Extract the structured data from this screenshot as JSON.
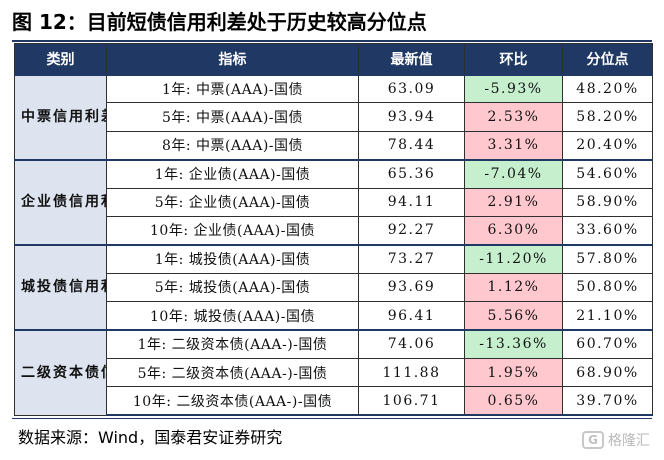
{
  "title": "图 12：目前短债信用利差处于历史较高分位点",
  "table": {
    "headers": [
      "类别",
      "指标",
      "最新值",
      "环比",
      "分位点"
    ],
    "groups": [
      {
        "category": "中票信用利差",
        "rows": [
          {
            "indicator": "1年: 中票(AAA)-国债",
            "latest": "63.09",
            "mom": "-5.93%",
            "mom_dir": "neg",
            "percentile": "48.20%"
          },
          {
            "indicator": "5年: 中票(AAA)-国债",
            "latest": "93.94",
            "mom": "2.53%",
            "mom_dir": "pos",
            "percentile": "58.20%"
          },
          {
            "indicator": "8年: 中票(AAA)-国债",
            "latest": "78.44",
            "mom": "3.31%",
            "mom_dir": "pos",
            "percentile": "20.40%"
          }
        ]
      },
      {
        "category": "企业债信用利差",
        "rows": [
          {
            "indicator": "1年: 企业债(AAA)-国债",
            "latest": "65.36",
            "mom": "-7.04%",
            "mom_dir": "neg",
            "percentile": "54.60%"
          },
          {
            "indicator": "5年: 企业债(AAA)-国债",
            "latest": "94.11",
            "mom": "2.91%",
            "mom_dir": "pos",
            "percentile": "58.90%"
          },
          {
            "indicator": "10年: 企业债(AAA)-国债",
            "latest": "92.27",
            "mom": "6.30%",
            "mom_dir": "pos",
            "percentile": "33.60%"
          }
        ]
      },
      {
        "category": "城投债信用利差",
        "rows": [
          {
            "indicator": "1年: 城投债(AAA)-国债",
            "latest": "73.27",
            "mom": "-11.20%",
            "mom_dir": "neg",
            "percentile": "57.80%"
          },
          {
            "indicator": "5年: 城投债(AAA)-国债",
            "latest": "93.69",
            "mom": "1.12%",
            "mom_dir": "pos",
            "percentile": "50.80%"
          },
          {
            "indicator": "10年: 城投债(AAA)-国债",
            "latest": "96.41",
            "mom": "5.56%",
            "mom_dir": "pos",
            "percentile": "21.10%"
          }
        ]
      },
      {
        "category": "二级资本债信用利差",
        "rows": [
          {
            "indicator": "1年: 二级资本债(AAA-)-国债",
            "latest": "74.06",
            "mom": "-13.36%",
            "mom_dir": "neg",
            "percentile": "60.70%"
          },
          {
            "indicator": "5年: 二级资本债(AAA-)-国债",
            "latest": "111.88",
            "mom": "1.95%",
            "mom_dir": "pos",
            "percentile": "68.90%"
          },
          {
            "indicator": "10年: 二级资本债(AAA-)-国债",
            "latest": "106.71",
            "mom": "0.65%",
            "mom_dir": "pos",
            "percentile": "39.70%"
          }
        ]
      }
    ]
  },
  "source": "数据来源：Wind，国泰君安证券研究",
  "watermark": {
    "logo": "G",
    "text": "格隆汇"
  },
  "colors": {
    "header": "#1f3864",
    "category_bg": "#dde4ef",
    "negative_bg": "#c6efce",
    "positive_bg": "#ffc7ce"
  }
}
